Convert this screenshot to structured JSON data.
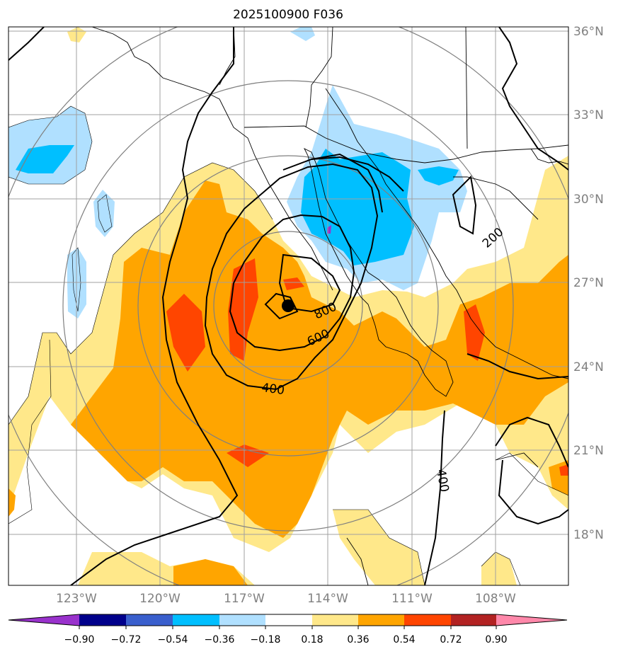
{
  "title": "2025100900 F036",
  "latitude_labels": [
    "36°N",
    "33°N",
    "30°N",
    "27°N",
    "24°N",
    "21°N",
    "18°N"
  ],
  "longitude_labels": [
    "123°W",
    "120°W",
    "117°W",
    "114°W",
    "111°W",
    "108°W"
  ],
  "contour_labels": [
    "200",
    "400",
    "600",
    "800",
    "400"
  ],
  "colorbar": {
    "ticks": [
      "−0.90",
      "−0.72",
      "−0.54",
      "−0.36",
      "−0.18",
      "0.18",
      "0.36",
      "0.54",
      "0.72",
      "0.90"
    ],
    "colors": [
      "#9932cc",
      "#00008b",
      "#3a5fcd",
      "#00bfff",
      "#b0e0ff",
      "#ffffff",
      "#ffe88a",
      "#ffa500",
      "#ff4500",
      "#b22222",
      "#ff88aa"
    ]
  },
  "palette": {
    "yellow": "#ffe88a",
    "orange": "#ffa500",
    "red": "#ff4500",
    "lightblue": "#b0e0ff",
    "blue": "#00bfff",
    "purple": "#9932cc"
  },
  "storm_marker": {
    "lat": 26.1,
    "lon": -115.4
  }
}
